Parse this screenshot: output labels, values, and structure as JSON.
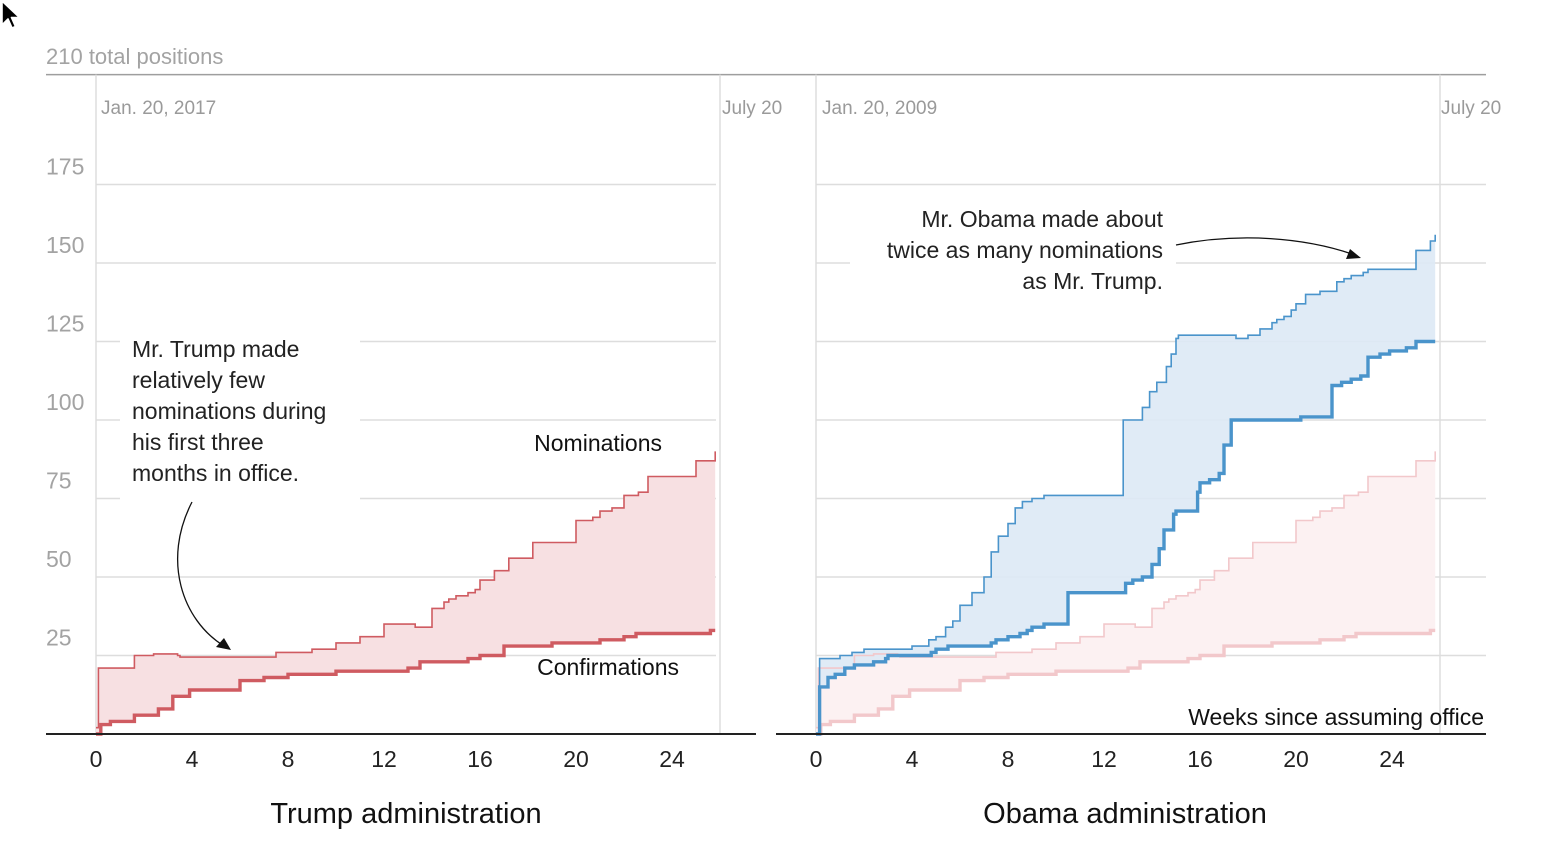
{
  "chart_data": {
    "type": "line",
    "top_label": "210 total positions",
    "y_ticks": [
      25,
      50,
      75,
      100,
      125,
      150,
      175
    ],
    "x_ticks": [
      0,
      4,
      8,
      12,
      16,
      20,
      24
    ],
    "xlim": [
      0,
      26
    ],
    "ylim": [
      0,
      210
    ],
    "x_axis_note": "Weeks since assuming office",
    "colors": {
      "trump": "#cf5b61",
      "trump_fill": "#f7e0e2",
      "trump_ghost": "#f2c8cb",
      "trump_ghost_fill": "#fcf1f2",
      "obama": "#4a94cb",
      "obama_fill": "#dde9f5",
      "grid": "#dddddd",
      "axis": "#222222"
    },
    "panels": [
      {
        "id": "trump",
        "title": "Trump administration",
        "start_label": "Jan. 20, 2017",
        "end_label": "July 20",
        "series": [
          {
            "name": "Nominations",
            "x": [
              0,
              0.1,
              1,
              1.6,
              2.4,
              3.4,
              3.5,
              5,
              7.5,
              9,
              10,
              10.8,
              11,
              12,
              12.7,
              13.3,
              13.5,
              14,
              14.5,
              14.7,
              15,
              15.5,
              15.8,
              16,
              16.3,
              16.6,
              17.2,
              17.9,
              18.2,
              19,
              19.5,
              20,
              20.7,
              21,
              21.5,
              22,
              22.6,
              23,
              24,
              24.5,
              25,
              25.6,
              25.8
            ],
            "values": [
              2,
              21,
              21,
              25,
              25.5,
              25,
              24.5,
              24.5,
              26,
              27,
              29,
              29,
              31,
              35,
              35,
              34,
              34,
              40,
              42,
              43,
              44,
              45,
              46,
              49,
              49,
              52,
              56,
              56,
              61,
              61,
              61,
              68,
              69,
              71,
              72,
              76,
              77,
              82,
              82,
              82,
              87,
              87,
              90
            ]
          },
          {
            "name": "Confirmations",
            "x": [
              0,
              0.2,
              0.6,
              1.6,
              2.6,
              3.2,
              3.9,
              5.5,
              6,
              7,
              8,
              9,
              10,
              11,
              12,
              13,
              13.5,
              14.5,
              15.5,
              16,
              17,
              18,
              19,
              20,
              21,
              22,
              22.5,
              24,
              25.6,
              25.8
            ],
            "values": [
              0,
              3,
              4,
              6,
              8,
              12,
              14,
              14,
              17,
              18,
              19,
              19,
              20,
              20,
              20,
              21,
              23,
              23,
              24,
              25,
              28,
              28,
              29,
              29,
              30,
              31,
              32,
              32,
              33,
              33
            ]
          }
        ]
      },
      {
        "id": "obama",
        "title": "Obama administration",
        "start_label": "Jan. 20, 2009",
        "end_label": "July 20",
        "series": [
          {
            "name": "",
            "x": [
              0,
              0.15,
              1,
              1.5,
              2,
              3,
              4,
              4.7,
              5,
              5.4,
              5.7,
              6,
              6.5,
              7,
              7.3,
              7.6,
              8,
              8.3,
              8.6,
              9,
              9.5,
              10,
              10.6,
              11.6,
              12.6,
              12.8,
              13.6,
              13.9,
              14.2,
              14.6,
              14.8,
              15,
              15.1,
              15.4,
              16.4,
              16.8,
              17,
              17.5,
              18,
              18.5,
              19,
              19.2,
              19.5,
              19.8,
              20,
              20.4,
              21,
              21.7,
              22,
              22.3,
              22.8,
              23,
              23.4,
              23.8,
              24.2,
              24.6,
              25,
              25.6,
              25.8
            ],
            "values": [
              0,
              24,
              25,
              26,
              27,
              27,
              28,
              30,
              31,
              34,
              36,
              41,
              45,
              50,
              58,
              63,
              67,
              72,
              74,
              75,
              76,
              76,
              76,
              76,
              76,
              100,
              104,
              109,
              112,
              117,
              121,
              126,
              127,
              127,
              127,
              127,
              127,
              126,
              127,
              129,
              131,
              132,
              133,
              135,
              137,
              140,
              141,
              144,
              145,
              146,
              147,
              148,
              148,
              148,
              148,
              148,
              154,
              157,
              159
            ]
          },
          {
            "name": "",
            "x": [
              0,
              0.15,
              0.5,
              0.8,
              1.2,
              1.6,
              2,
              2.4,
              2.9,
              3,
              4,
              4.8,
              5,
              5.5,
              6,
              6.7,
              7.3,
              7.5,
              8,
              8.5,
              8.8,
              9,
              9.5,
              10,
              10.5,
              11,
              12,
              12.5,
              12.9,
              13.2,
              13.6,
              14,
              14.3,
              14.5,
              14.9,
              15,
              15.2,
              15.5,
              15.9,
              16,
              16.4,
              16.8,
              17,
              17.3,
              18.3,
              18.7,
              19,
              19.4,
              19.8,
              20.2,
              20.6,
              21,
              21.3,
              21.5,
              21.9,
              22.3,
              22.7,
              23,
              23.5,
              23.9,
              24.2,
              24.6,
              25,
              25.6,
              25.8
            ],
            "values": [
              0,
              15,
              18,
              19,
              21,
              22,
              22,
              23,
              24,
              25,
              25,
              26,
              27,
              28,
              28,
              28,
              29,
              30,
              31,
              32,
              33,
              34,
              35,
              35,
              45,
              45,
              45,
              45,
              48,
              49,
              50,
              54,
              59,
              65,
              70,
              71,
              71,
              71,
              77,
              80,
              81,
              83,
              92,
              100,
              100,
              100,
              100,
              100,
              100,
              101,
              101,
              101,
              101,
              111,
              112,
              113,
              114,
              120,
              121,
              122,
              122,
              123,
              125,
              125,
              125
            ]
          }
        ]
      }
    ],
    "annotations": {
      "trump": [
        "Mr. Trump made",
        "relatively few",
        "nominations during",
        "his first three",
        "months in office."
      ],
      "obama": [
        "Mr. Obama made about",
        "twice as many nominations",
        "as Mr. Trump."
      ]
    }
  }
}
